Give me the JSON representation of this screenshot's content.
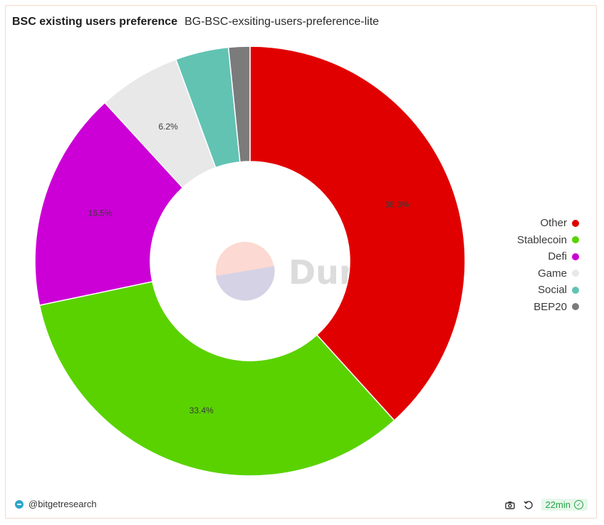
{
  "header": {
    "title": "BSC existing users preference",
    "subtitle": "BG-BSC-exsiting-users-preference-lite"
  },
  "watermark": {
    "text": "Dune"
  },
  "chart_data": {
    "type": "pie",
    "donut": true,
    "title": "BSC existing users preference",
    "slices": [
      {
        "name": "Other",
        "value": 38.3,
        "label": "38.3%",
        "color": "#e10000"
      },
      {
        "name": "Stablecoin",
        "value": 33.4,
        "label": "33.4%",
        "color": "#5ad200"
      },
      {
        "name": "Defi",
        "value": 16.5,
        "label": "16.5%",
        "color": "#cc00d6"
      },
      {
        "name": "Game",
        "value": 6.2,
        "label": "6.2%",
        "color": "#e8e8e8"
      },
      {
        "name": "Social",
        "value": 4.0,
        "label": "",
        "color": "#62c3b3"
      },
      {
        "name": "BEP20",
        "value": 1.6,
        "label": "",
        "color": "#7b7b7b"
      }
    ],
    "legend_position": "right"
  },
  "footer": {
    "author": "@bitgetresearch",
    "refresh_age": "22min",
    "icons": [
      "camera-icon",
      "refresh-icon",
      "check-circle-icon"
    ]
  }
}
